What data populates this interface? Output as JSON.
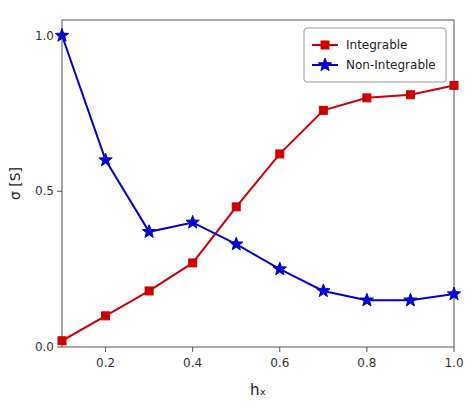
{
  "chart_data": {
    "type": "line",
    "x": [
      0.1,
      0.2,
      0.3,
      0.4,
      0.5,
      0.6,
      0.7,
      0.8,
      0.9,
      1.0
    ],
    "series": [
      {
        "name": "Integrable",
        "color": "#cc0000",
        "marker": "square",
        "line_style": "solid",
        "values": [
          0.02,
          0.1,
          0.18,
          0.27,
          0.45,
          0.62,
          0.76,
          0.8,
          0.81,
          0.84
        ]
      },
      {
        "name": "Non-Integrable",
        "color": "#0000cc",
        "marker": "star",
        "line_style": "solid",
        "values": [
          1.0,
          0.6,
          0.37,
          0.4,
          0.33,
          0.25,
          0.18,
          0.15,
          0.15,
          0.17
        ]
      }
    ],
    "xlabel": "hₓ",
    "ylabel": "σ [S]",
    "xlim": [
      0.1,
      1.0
    ],
    "ylim": [
      0.0,
      1.05
    ],
    "xticks": [
      0.2,
      0.4,
      0.6,
      0.8,
      {
        "value": 1.0,
        "label": "1.0"
      }
    ],
    "yticks": [
      {
        "value": 0.0,
        "label": "0.0"
      },
      0.5,
      {
        "value": 1.0,
        "label": "1.0"
      }
    ],
    "grid": false,
    "legend": "upper right"
  }
}
